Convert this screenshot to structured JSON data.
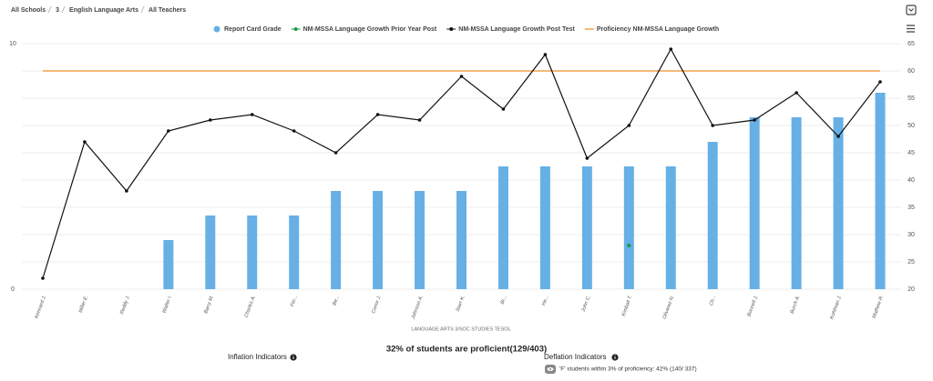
{
  "header": {
    "breadcrumb": [
      "All Schools",
      "3",
      "English Language Arts",
      "All Teachers"
    ]
  },
  "chart_data": {
    "type": "combo",
    "x_label": "LANGUAGE ARTS 3/SOC STUDIES TESOL",
    "categories": [
      "Kennard J.",
      "Miller E.",
      "Reddy J.",
      "Walter I.",
      "Barry M.",
      "Charles A.",
      "Fer...",
      "Be...",
      "Conor J.",
      "Johnson A.",
      "Starr K.",
      "Br...",
      "He...",
      "John C.",
      "Kimball T.",
      "Olivarez N.",
      "Ch...",
      "Bonnell J.",
      "Burch A.",
      "Kohlman J.",
      "Mathew R."
    ],
    "series": [
      {
        "name": "Report Card Grade",
        "type": "bar",
        "color": "#67b0e6",
        "values": [
          null,
          null,
          null,
          2,
          3,
          3,
          3,
          4,
          4,
          4,
          4,
          5,
          5,
          5,
          5,
          5,
          6,
          7,
          7,
          7,
          8
        ]
      },
      {
        "name": "NM-MSSA Language Growth Prior Year Post",
        "type": "dot",
        "axis": "y2",
        "color": "#1a9a4a",
        "values": [
          null,
          null,
          null,
          null,
          null,
          null,
          null,
          null,
          null,
          null,
          null,
          null,
          null,
          null,
          28,
          null,
          null,
          null,
          null,
          null,
          null
        ]
      },
      {
        "name": "NM-MSSA Language Growth Post Test",
        "type": "line",
        "axis": "y2",
        "color": "#111111",
        "values": [
          22,
          47,
          38,
          49,
          51,
          52,
          49,
          45,
          52,
          51,
          59,
          53,
          63,
          44,
          50,
          64,
          50,
          51,
          56,
          48,
          58
        ]
      },
      {
        "name": "Proficiency NM-MSSA Language Growth",
        "type": "hline",
        "axis": "y2",
        "color": "#f0a04a",
        "values": [
          60,
          60,
          60,
          60,
          60,
          60,
          60,
          60,
          60,
          60,
          60,
          60,
          60,
          60,
          60,
          60,
          60,
          60,
          60,
          60,
          60
        ]
      }
    ],
    "ylim": [
      0,
      10
    ],
    "yticks": [
      0,
      10
    ],
    "y2lim": [
      20,
      65
    ],
    "y2ticks": [
      20,
      25,
      30,
      35,
      40,
      45,
      50,
      55,
      60,
      65
    ],
    "grid": true
  },
  "summary": {
    "text": "32% of students are proficient(129/403)"
  },
  "inflation": {
    "title": "Inflation Indicators"
  },
  "deflation": {
    "title": "Deflation Indicators",
    "items": [
      "'F' students within 3% of proficiency: 42% (140/ 337)"
    ]
  }
}
